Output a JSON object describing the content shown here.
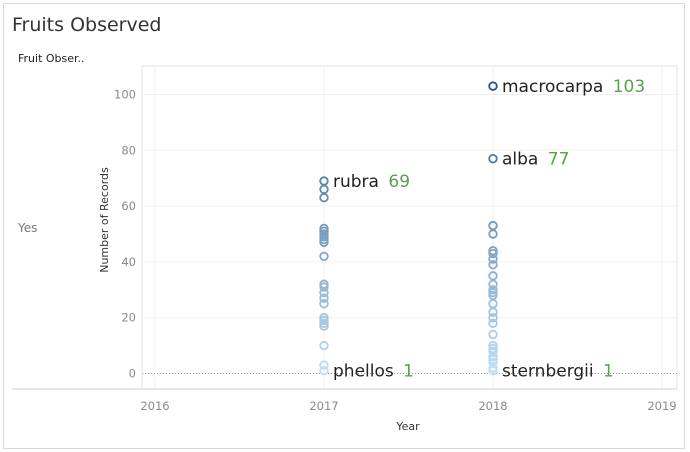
{
  "title": "Fruits Observed",
  "pane_header": "Fruit Obser..",
  "row_label": "Yes",
  "chart_data": {
    "type": "scatter",
    "title": "Fruits Observed",
    "xlabel": "Year",
    "ylabel": "Number of Records",
    "x_ticks": [
      "2016",
      "2017",
      "2018",
      "2019"
    ],
    "y_ticks": [
      0,
      20,
      40,
      60,
      80,
      100
    ],
    "xlim": [
      2016,
      2019
    ],
    "ylim": [
      -3,
      110
    ],
    "grid": true,
    "reference_line_y": 0,
    "color_scale": {
      "low": "#bfe0f4",
      "high": "#2a5783"
    },
    "points": [
      {
        "x": 2017,
        "y": 69,
        "label": "rubra",
        "value_label": "69"
      },
      {
        "x": 2017,
        "y": 66
      },
      {
        "x": 2017,
        "y": 63
      },
      {
        "x": 2017,
        "y": 52
      },
      {
        "x": 2017,
        "y": 51
      },
      {
        "x": 2017,
        "y": 50
      },
      {
        "x": 2017,
        "y": 49
      },
      {
        "x": 2017,
        "y": 48
      },
      {
        "x": 2017,
        "y": 47
      },
      {
        "x": 2017,
        "y": 42
      },
      {
        "x": 2017,
        "y": 32
      },
      {
        "x": 2017,
        "y": 31
      },
      {
        "x": 2017,
        "y": 29
      },
      {
        "x": 2017,
        "y": 27
      },
      {
        "x": 2017,
        "y": 25
      },
      {
        "x": 2017,
        "y": 20
      },
      {
        "x": 2017,
        "y": 19
      },
      {
        "x": 2017,
        "y": 18
      },
      {
        "x": 2017,
        "y": 17
      },
      {
        "x": 2017,
        "y": 10
      },
      {
        "x": 2017,
        "y": 3
      },
      {
        "x": 2017,
        "y": 1,
        "label": "phellos",
        "value_label": "1"
      },
      {
        "x": 2018,
        "y": 103,
        "label": "macrocarpa",
        "value_label": "103"
      },
      {
        "x": 2018,
        "y": 77,
        "label": "alba",
        "value_label": "77"
      },
      {
        "x": 2018,
        "y": 53
      },
      {
        "x": 2018,
        "y": 50
      },
      {
        "x": 2018,
        "y": 44
      },
      {
        "x": 2018,
        "y": 43
      },
      {
        "x": 2018,
        "y": 41
      },
      {
        "x": 2018,
        "y": 39
      },
      {
        "x": 2018,
        "y": 35
      },
      {
        "x": 2018,
        "y": 32
      },
      {
        "x": 2018,
        "y": 30
      },
      {
        "x": 2018,
        "y": 29
      },
      {
        "x": 2018,
        "y": 28
      },
      {
        "x": 2018,
        "y": 25
      },
      {
        "x": 2018,
        "y": 22
      },
      {
        "x": 2018,
        "y": 20
      },
      {
        "x": 2018,
        "y": 18
      },
      {
        "x": 2018,
        "y": 14
      },
      {
        "x": 2018,
        "y": 10
      },
      {
        "x": 2018,
        "y": 9
      },
      {
        "x": 2018,
        "y": 8
      },
      {
        "x": 2018,
        "y": 6
      },
      {
        "x": 2018,
        "y": 5
      },
      {
        "x": 2018,
        "y": 4
      },
      {
        "x": 2018,
        "y": 2
      },
      {
        "x": 2018,
        "y": 1,
        "label": "sternbergii",
        "value_label": "1"
      }
    ]
  }
}
